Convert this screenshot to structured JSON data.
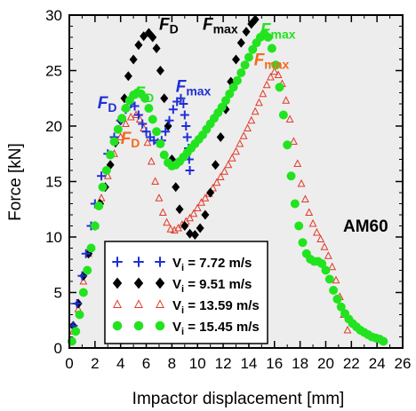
{
  "chart_data": {
    "type": "scatter",
    "xlabel": "Impactor displacement [mm]",
    "ylabel": "Force [kN]",
    "xlim": [
      0,
      26
    ],
    "ylim": [
      0,
      30
    ],
    "xticks": [
      "0",
      "2",
      "4",
      "6",
      "8",
      "10",
      "12",
      "14",
      "16",
      "18",
      "20",
      "22",
      "24",
      "26"
    ],
    "yticks": [
      "0",
      "5",
      "10",
      "15",
      "20",
      "25",
      "30"
    ],
    "grid": false,
    "background": "#ededed",
    "material_label": "AM60",
    "legend_position": "bottom-left",
    "series": [
      {
        "name": "Vi = 7.72 m/s",
        "legend_main": "V",
        "legend_sub": "i",
        "legend_rest": " = 7.72 m/s",
        "marker": "plus",
        "color": "#1f2fd6",
        "points": [
          [
            0.3,
            2
          ],
          [
            0.6,
            4
          ],
          [
            1,
            6.5
          ],
          [
            1.3,
            8.5
          ],
          [
            1.7,
            11
          ],
          [
            2,
            13
          ],
          [
            2.5,
            15.5
          ],
          [
            3,
            17.5
          ],
          [
            3.5,
            19
          ],
          [
            4,
            20.5
          ],
          [
            4.4,
            21.5
          ],
          [
            4.8,
            22
          ],
          [
            5.1,
            21.8
          ],
          [
            5.4,
            21
          ],
          [
            5.7,
            20.2
          ],
          [
            6,
            19.5
          ],
          [
            6.3,
            19
          ],
          [
            6.6,
            18.7
          ],
          [
            6.9,
            18.5
          ],
          [
            7.2,
            18.7
          ],
          [
            7.5,
            19.5
          ],
          [
            7.8,
            20.5
          ],
          [
            8.1,
            21.5
          ],
          [
            8.4,
            22.2
          ],
          [
            8.7,
            22.5
          ],
          [
            8.9,
            22
          ],
          [
            9,
            21
          ],
          [
            9.1,
            20
          ],
          [
            9.2,
            19
          ],
          [
            9.3,
            18
          ],
          [
            9.35,
            17
          ],
          [
            9.4,
            16
          ]
        ]
      },
      {
        "name": "Vi = 9.51 m/s",
        "legend_main": "V",
        "legend_sub": "i",
        "legend_rest": " = 9.51 m/s",
        "marker": "diamond",
        "color": "#000000",
        "points": [
          [
            0.3,
            2
          ],
          [
            0.7,
            4
          ],
          [
            1.1,
            6.5
          ],
          [
            1.5,
            8.5
          ],
          [
            2,
            11
          ],
          [
            2.4,
            13
          ],
          [
            2.8,
            14.5
          ],
          [
            3.2,
            16.5
          ],
          [
            3.6,
            18.5
          ],
          [
            4,
            20.5
          ],
          [
            4.3,
            22.5
          ],
          [
            4.6,
            24.5
          ],
          [
            5,
            26
          ],
          [
            5.4,
            27.3
          ],
          [
            5.8,
            28.1
          ],
          [
            6.2,
            28.4
          ],
          [
            6.5,
            28
          ],
          [
            6.8,
            27
          ],
          [
            7.1,
            25
          ],
          [
            7.4,
            22.5
          ],
          [
            7.7,
            20
          ],
          [
            8,
            17
          ],
          [
            8.3,
            14.5
          ],
          [
            8.6,
            12.5
          ],
          [
            9,
            11
          ],
          [
            9.4,
            10.3
          ],
          [
            9.8,
            10.2
          ],
          [
            10.2,
            10.8
          ],
          [
            10.6,
            12
          ],
          [
            11,
            14
          ],
          [
            11.4,
            16.5
          ],
          [
            11.8,
            19
          ],
          [
            12.2,
            21.5
          ],
          [
            12.6,
            24
          ],
          [
            13,
            26
          ],
          [
            13.4,
            27.5
          ],
          [
            13.8,
            28.5
          ],
          [
            14.2,
            29.2
          ],
          [
            14.5,
            29.6
          ]
        ]
      },
      {
        "name": "Vi = 13.59 m/s",
        "legend_main": "V",
        "legend_sub": "i",
        "legend_rest": " = 13.59 m/s",
        "marker": "triangle",
        "color": "#e23a2a",
        "points": [
          [
            0.3,
            1.5
          ],
          [
            0.7,
            3.5
          ],
          [
            1.1,
            6
          ],
          [
            1.5,
            8.5
          ],
          [
            2,
            11
          ],
          [
            2.5,
            13.5
          ],
          [
            3,
            15.5
          ],
          [
            3.5,
            17.5
          ],
          [
            4,
            19
          ],
          [
            4.4,
            20.2
          ],
          [
            4.8,
            20.8
          ],
          [
            5.2,
            21
          ],
          [
            5.5,
            20.6
          ],
          [
            5.8,
            19.8
          ],
          [
            6.1,
            18.5
          ],
          [
            6.4,
            16.8
          ],
          [
            6.7,
            15
          ],
          [
            7,
            13.5
          ],
          [
            7.3,
            12.2
          ],
          [
            7.6,
            11.3
          ],
          [
            7.9,
            10.7
          ],
          [
            8.2,
            10.6
          ],
          [
            8.5,
            10.8
          ],
          [
            8.8,
            11.1
          ],
          [
            9.1,
            11.4
          ],
          [
            9.4,
            11.7
          ],
          [
            9.7,
            12.1
          ],
          [
            10,
            12.6
          ],
          [
            10.3,
            13.1
          ],
          [
            10.6,
            13.5
          ],
          [
            10.9,
            13.9
          ],
          [
            11.2,
            14.4
          ],
          [
            11.5,
            14.9
          ],
          [
            11.8,
            15.4
          ],
          [
            12.1,
            15.9
          ],
          [
            12.4,
            16.5
          ],
          [
            12.7,
            17.1
          ],
          [
            13,
            17.7
          ],
          [
            13.3,
            18.4
          ],
          [
            13.6,
            19.1
          ],
          [
            13.9,
            19.8
          ],
          [
            14.2,
            20.5
          ],
          [
            14.5,
            21.3
          ],
          [
            14.8,
            22.1
          ],
          [
            15.1,
            22.9
          ],
          [
            15.4,
            23.7
          ],
          [
            15.7,
            24.4
          ],
          [
            16,
            24.9
          ],
          [
            16.3,
            24.6
          ],
          [
            16.6,
            23.8
          ],
          [
            16.9,
            22.3
          ],
          [
            17.2,
            20.6
          ],
          [
            17.5,
            18.6
          ],
          [
            17.8,
            16.6
          ],
          [
            18.1,
            14.8
          ],
          [
            18.4,
            13.4
          ],
          [
            18.7,
            12.2
          ],
          [
            19,
            11.2
          ],
          [
            19.3,
            10.4
          ],
          [
            19.6,
            9.8
          ],
          [
            19.9,
            9.1
          ],
          [
            20.2,
            8.3
          ],
          [
            20.5,
            7.3
          ],
          [
            20.8,
            6.1
          ],
          [
            21.1,
            4.6
          ],
          [
            21.4,
            3
          ],
          [
            21.7,
            1.6
          ]
        ]
      },
      {
        "name": "Vi = 15.45 m/s",
        "legend_main": "V",
        "legend_sub": "i",
        "legend_rest": " = 15.45 m/s",
        "marker": "circle",
        "color": "#22e31f",
        "points": [
          [
            0.2,
            0.6
          ],
          [
            0.5,
            1.5
          ],
          [
            0.8,
            3
          ],
          [
            1.1,
            5
          ],
          [
            1.4,
            7
          ],
          [
            1.7,
            9
          ],
          [
            2,
            11
          ],
          [
            2.3,
            12.8
          ],
          [
            2.6,
            14.5
          ],
          [
            2.9,
            16
          ],
          [
            3.2,
            17.4
          ],
          [
            3.5,
            18.6
          ],
          [
            3.8,
            19.7
          ],
          [
            4.1,
            20.7
          ],
          [
            4.4,
            21.6
          ],
          [
            4.7,
            22.3
          ],
          [
            5,
            22.8
          ],
          [
            5.3,
            23
          ],
          [
            5.6,
            22.9
          ],
          [
            5.9,
            22.5
          ],
          [
            6.2,
            21.6
          ],
          [
            6.5,
            20.6
          ],
          [
            6.8,
            19.5
          ],
          [
            7.1,
            18.4
          ],
          [
            7.4,
            17.4
          ],
          [
            7.7,
            16.7
          ],
          [
            8,
            16.4
          ],
          [
            8.3,
            16.5
          ],
          [
            8.6,
            16.8
          ],
          [
            8.9,
            17.2
          ],
          [
            9.2,
            17.6
          ],
          [
            9.5,
            18
          ],
          [
            9.8,
            18.4
          ],
          [
            10.1,
            18.8
          ],
          [
            10.4,
            19.2
          ],
          [
            10.7,
            19.7
          ],
          [
            11,
            20.2
          ],
          [
            11.3,
            20.7
          ],
          [
            11.6,
            21.2
          ],
          [
            11.9,
            21.7
          ],
          [
            12.2,
            22.3
          ],
          [
            12.5,
            22.9
          ],
          [
            12.8,
            23.5
          ],
          [
            13.1,
            24.1
          ],
          [
            13.4,
            24.8
          ],
          [
            13.7,
            25.5
          ],
          [
            14,
            26.2
          ],
          [
            14.3,
            26.9
          ],
          [
            14.6,
            27.5
          ],
          [
            14.9,
            28
          ],
          [
            15.2,
            28.3
          ],
          [
            15.5,
            28
          ],
          [
            15.8,
            27
          ],
          [
            16.1,
            25.5
          ],
          [
            16.4,
            23.5
          ],
          [
            16.7,
            21
          ],
          [
            17,
            18.3
          ],
          [
            17.3,
            15.5
          ],
          [
            17.6,
            13
          ],
          [
            17.9,
            11
          ],
          [
            18.2,
            9.5
          ],
          [
            18.5,
            8.5
          ],
          [
            18.8,
            8
          ],
          [
            19.1,
            7.8
          ],
          [
            19.4,
            7.8
          ],
          [
            19.7,
            7.6
          ],
          [
            20,
            7
          ],
          [
            20.3,
            6.2
          ],
          [
            20.6,
            5.2
          ],
          [
            20.9,
            4.4
          ],
          [
            21.2,
            3.7
          ],
          [
            21.5,
            3.1
          ],
          [
            21.8,
            2.6
          ],
          [
            22.1,
            2.2
          ],
          [
            22.4,
            1.9
          ],
          [
            22.7,
            1.6
          ],
          [
            23,
            1.4
          ],
          [
            23.3,
            1.2
          ],
          [
            23.6,
            1
          ],
          [
            23.9,
            0.9
          ],
          [
            24.2,
            0.8
          ],
          [
            24.5,
            0.6
          ]
        ]
      }
    ],
    "annotations": [
      {
        "main": "F",
        "sub": "D",
        "x": 7.0,
        "y": 28.7,
        "color": "#000000"
      },
      {
        "main": "F",
        "sub": "max",
        "x": 10.4,
        "y": 28.7,
        "color": "#000000"
      },
      {
        "main": "F",
        "sub": "D",
        "x": 2.2,
        "y": 21.6,
        "color": "#1f2fd6"
      },
      {
        "main": "F",
        "sub": "max",
        "x": 8.3,
        "y": 23.1,
        "color": "#1f2fd6"
      },
      {
        "main": "F",
        "sub": "D",
        "x": 5.1,
        "y": 22.5,
        "color": "#22e31f"
      },
      {
        "main": "F",
        "sub": "max",
        "x": 14.9,
        "y": 28.2,
        "color": "#22e31f"
      },
      {
        "main": "F",
        "sub": "D",
        "x": 4.0,
        "y": 18.4,
        "color": "#f26a1f"
      },
      {
        "main": "F",
        "sub": "max",
        "x": 14.4,
        "y": 25.5,
        "color": "#f26a1f"
      }
    ]
  }
}
